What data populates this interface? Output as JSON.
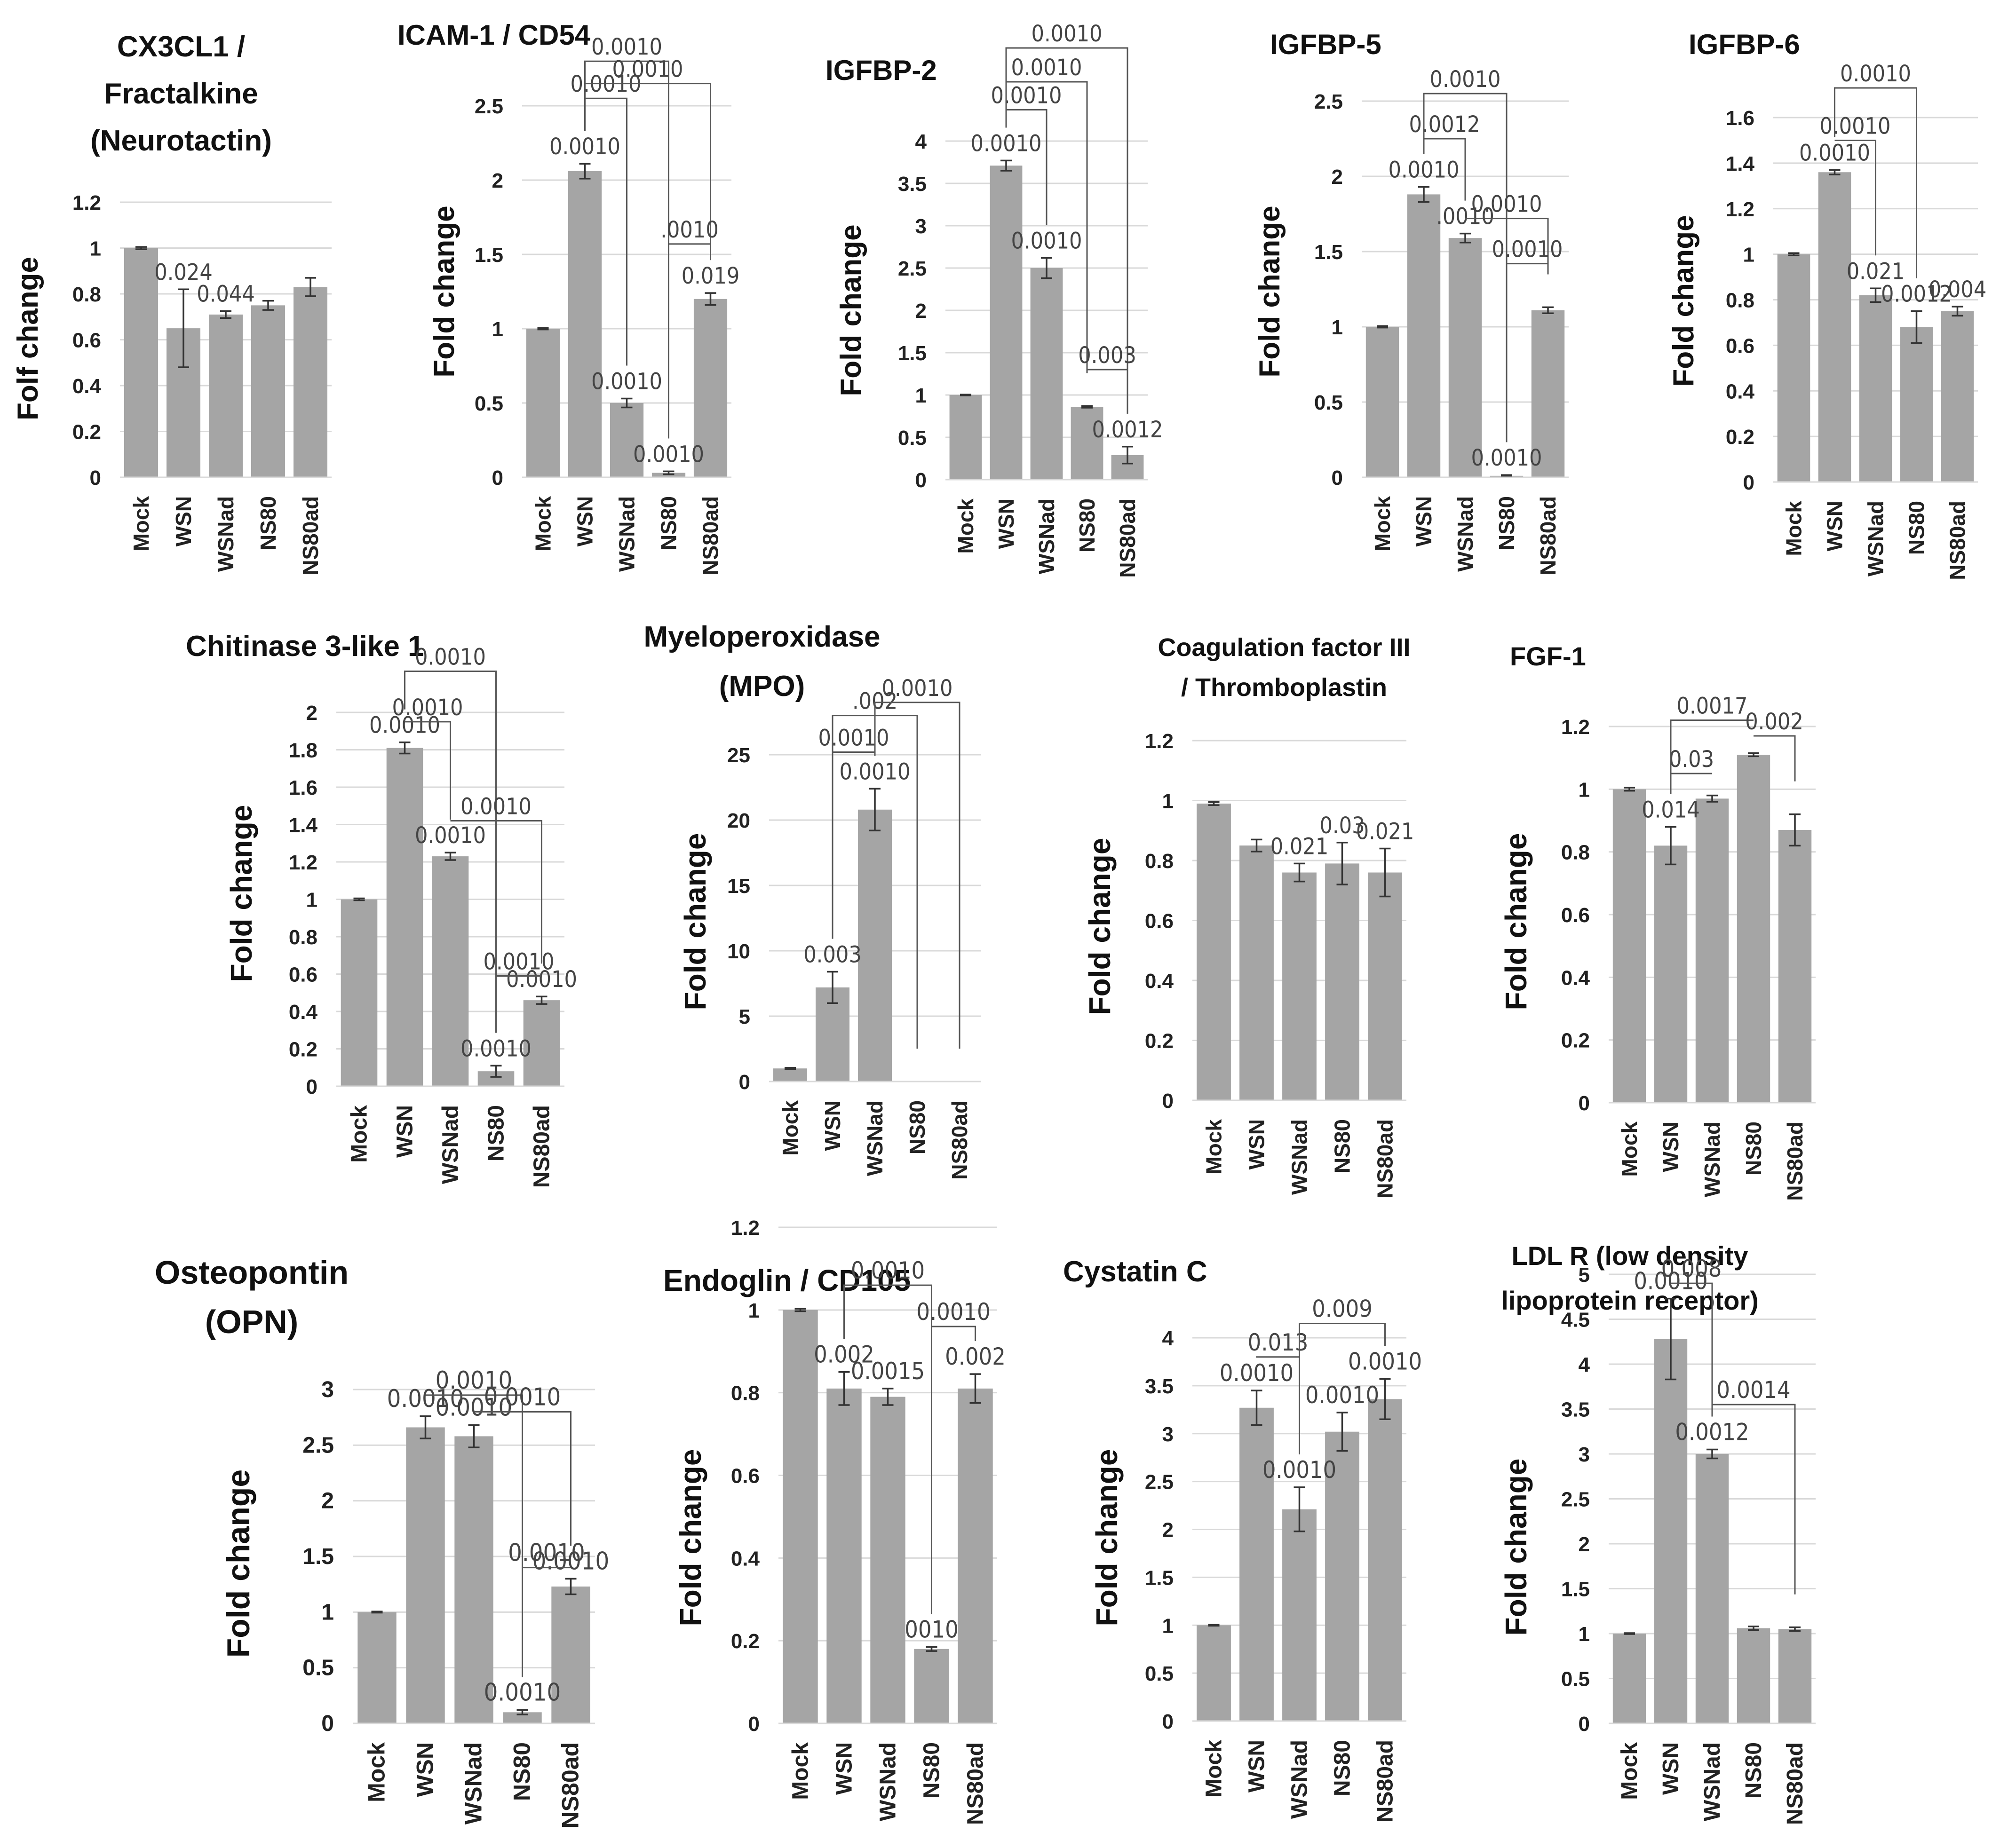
{
  "chart_data": [
    {
      "type": "bar",
      "title_lines": [
        "CX3CL1 /",
        "Fractalkine",
        "(Neurotactin)"
      ],
      "ylabel": "Folf change",
      "categories": [
        "Mock",
        "WSN",
        "WSNad",
        "NS80",
        "NS80ad"
      ],
      "values": [
        1.0,
        0.65,
        0.71,
        0.75,
        0.83
      ],
      "errors": [
        0.005,
        0.17,
        0.015,
        0.02,
        0.04
      ],
      "ylim": [
        0,
        1.2
      ],
      "yticks": [
        "0",
        "0.2",
        "0.4",
        "0.6",
        "0.8",
        "1",
        "1.2"
      ],
      "bar_labels": [
        "",
        "0.024",
        "0.044",
        "",
        ""
      ],
      "brackets": []
    },
    {
      "type": "bar",
      "title_lines": [
        "ICAM-1 / CD54"
      ],
      "ylabel": "Fold change",
      "categories": [
        "Mock",
        "WSN",
        "WSNad",
        "NS80",
        "NS80ad"
      ],
      "values": [
        1.0,
        2.06,
        0.5,
        0.03,
        1.2
      ],
      "errors": [
        0.005,
        0.05,
        0.03,
        0.01,
        0.04
      ],
      "ylim": [
        0,
        2.5
      ],
      "yticks": [
        "0",
        "0.5",
        "1",
        "1.5",
        "2",
        "2.5"
      ],
      "bar_labels": [
        "",
        "0.0010",
        "0.0010",
        "0.0010",
        "0.019"
      ],
      "brackets": [
        {
          "from": 1,
          "to": 2,
          "y": 2.55,
          "label": "0.0010"
        },
        {
          "from": 1,
          "to": 3,
          "y": 2.8,
          "label": "0.0010"
        },
        {
          "from": 1,
          "to": 4,
          "y": 2.65,
          "label": "0.0010"
        },
        {
          "from": 3,
          "to": 4,
          "y": 1.57,
          "label": ".0010"
        }
      ]
    },
    {
      "type": "bar",
      "title_lines": [
        "IGFBP-2"
      ],
      "ylabel": "Fold change",
      "categories": [
        "Mock",
        "WSN",
        "WSNad",
        "NS80",
        "NS80ad"
      ],
      "values": [
        1.0,
        3.71,
        2.5,
        0.86,
        0.29
      ],
      "errors": [
        0.005,
        0.06,
        0.12,
        0.01,
        0.1
      ],
      "ylim": [
        0,
        4
      ],
      "yticks": [
        "0",
        "0.5",
        "1",
        "1.5",
        "2",
        "2.5",
        "3",
        "3.5",
        "4"
      ],
      "bar_labels": [
        "",
        "0.0010",
        "0.0010",
        "",
        "0.0012"
      ],
      "brackets": [
        {
          "from": 1,
          "to": 2,
          "y": 4.37,
          "label": "0.0010"
        },
        {
          "from": 1,
          "to": 3,
          "y": 4.7,
          "label": "0.0010"
        },
        {
          "from": 1,
          "to": 4,
          "y": 5.1,
          "label": "0.0010"
        },
        {
          "from": 3,
          "to": 4,
          "y": 1.3,
          "label": "0.003"
        }
      ]
    },
    {
      "type": "bar",
      "title_lines": [
        "IGFBP-5"
      ],
      "ylabel": "Fold change",
      "categories": [
        "Mock",
        "WSN",
        "WSNad",
        "NS80",
        "NS80ad"
      ],
      "values": [
        1.0,
        1.88,
        1.59,
        0.01,
        1.11
      ],
      "errors": [
        0.005,
        0.05,
        0.03,
        0.005,
        0.02
      ],
      "ylim": [
        0,
        2.5
      ],
      "yticks": [
        "0",
        "0.5",
        "1",
        "1.5",
        "2",
        "2.5"
      ],
      "bar_labels": [
        "",
        "0.0010",
        ".0010",
        "0.0010",
        ""
      ],
      "brackets": [
        {
          "from": 1,
          "to": 2,
          "y": 2.25,
          "label": "0.0012"
        },
        {
          "from": 1,
          "to": 3,
          "y": 2.55,
          "label": "0.0010"
        },
        {
          "from": 2,
          "to": 4,
          "y": 1.72,
          "label": "0.0010"
        },
        {
          "from": 3,
          "to": 4,
          "y": 1.42,
          "label": "0.0010"
        }
      ]
    },
    {
      "type": "bar",
      "title_lines": [
        "IGFBP-6"
      ],
      "ylabel": "Fold change",
      "categories": [
        "Mock",
        "WSN",
        "WSNad",
        "NS80",
        "NS80ad"
      ],
      "values": [
        1.0,
        1.36,
        0.82,
        0.68,
        0.75
      ],
      "errors": [
        0.005,
        0.01,
        0.03,
        0.07,
        0.02
      ],
      "ylim": [
        0,
        1.6
      ],
      "yticks": [
        "0",
        "0.2",
        "0.4",
        "0.6",
        "0.8",
        "1",
        "1.2",
        "1.4",
        "1.6"
      ],
      "bar_labels": [
        "",
        "0.0010",
        "0.021",
        "0.0012",
        "0.004"
      ],
      "brackets": [
        {
          "from": 1,
          "to": 2,
          "y": 1.5,
          "label": "0.0010"
        },
        {
          "from": 1,
          "to": 3,
          "y": 1.73,
          "label": "0.0010"
        }
      ]
    },
    {
      "type": "bar",
      "title_lines": [
        "Chitinase 3-like 1"
      ],
      "ylabel": "Fold change",
      "categories": [
        "Mock",
        "WSN",
        "WSNad",
        "NS80",
        "NS80ad"
      ],
      "values": [
        1.0,
        1.81,
        1.23,
        0.08,
        0.46
      ],
      "errors": [
        0.005,
        0.03,
        0.02,
        0.03,
        0.02
      ],
      "ylim": [
        0,
        2
      ],
      "yticks": [
        "0",
        "0.2",
        "0.4",
        "0.6",
        "0.8",
        "1",
        "1.2",
        "1.4",
        "1.6",
        "1.8",
        "2"
      ],
      "bar_labels": [
        "",
        "0.0010",
        "0.0010",
        "0.0010",
        "0.0010"
      ],
      "brackets": [
        {
          "from": 1,
          "to": 2,
          "y": 1.95,
          "label": "0.0010"
        },
        {
          "from": 1,
          "to": 3,
          "y": 2.22,
          "label": "0.0010"
        },
        {
          "from": 2,
          "to": 4,
          "y": 1.42,
          "label": "0.0010"
        },
        {
          "from": 3,
          "to": 4,
          "y": 0.59,
          "label": "0.0010"
        }
      ]
    },
    {
      "type": "bar",
      "title_lines": [
        "Myeloperoxidase",
        "(MPO)"
      ],
      "ylabel": "Fold change",
      "categories": [
        "Mock",
        "WSN",
        "WSNad",
        "NS80",
        "NS80ad"
      ],
      "values": [
        1.0,
        7.2,
        20.8,
        0,
        0
      ],
      "errors": [
        0.05,
        1.2,
        1.6,
        0,
        0
      ],
      "ylim": [
        0,
        25
      ],
      "yticks": [
        "0",
        "5",
        "10",
        "15",
        "20",
        "25"
      ],
      "bar_labels": [
        "",
        "0.003",
        "0.0010",
        "",
        ""
      ],
      "brackets": [
        {
          "from": 1,
          "to": 2,
          "y": 25.2,
          "label": "0.0010"
        },
        {
          "from": 1,
          "to": 3,
          "y": 28.0,
          "label": ".002"
        },
        {
          "from": 2,
          "to": 4,
          "y": 29.0,
          "label": "0.0010"
        }
      ]
    },
    {
      "type": "bar",
      "title_lines": [
        "Coagulation factor III",
        "/ Thromboplastin"
      ],
      "ylabel": "Fold change",
      "categories": [
        "Mock",
        "WSN",
        "WSNad",
        "NS80",
        "NS80ad"
      ],
      "values": [
        0.99,
        0.85,
        0.76,
        0.79,
        0.76
      ],
      "errors": [
        0.005,
        0.02,
        0.03,
        0.07,
        0.08
      ],
      "ylim": [
        0,
        1.2
      ],
      "yticks": [
        "0",
        "0.2",
        "0.4",
        "0.6",
        "0.8",
        "1",
        "1.2"
      ],
      "bar_labels": [
        "",
        "",
        "0.021",
        "0.03",
        "0.021"
      ],
      "brackets": []
    },
    {
      "type": "bar",
      "title_lines": [
        "FGF-1"
      ],
      "ylabel": "Fold change",
      "categories": [
        "Mock",
        "WSN",
        "WSNad",
        "NS80",
        "NS80ad"
      ],
      "values": [
        1.0,
        0.82,
        0.97,
        1.11,
        0.87
      ],
      "errors": [
        0.005,
        0.06,
        0.01,
        0.005,
        0.05
      ],
      "ylim": [
        0,
        1.2
      ],
      "yticks": [
        "0",
        "0.2",
        "0.4",
        "0.6",
        "0.8",
        "1",
        "1.2"
      ],
      "bar_labels": [
        "",
        "0.014",
        "",
        "",
        ""
      ],
      "brackets": [
        {
          "from": 1,
          "to": 2,
          "y": 1.05,
          "label": "0.03"
        },
        {
          "from": 1,
          "to": 3,
          "y": 1.22,
          "label": "0.0017"
        },
        {
          "from": 3,
          "to": 4,
          "y": 1.17,
          "label": "0.002"
        }
      ]
    },
    {
      "type": "bar",
      "title_lines": [
        "Osteopontin",
        "(OPN)"
      ],
      "ylabel": "Fold change",
      "categories": [
        "Mock",
        "WSN",
        "WSNad",
        "NS80",
        "NS80ad"
      ],
      "values": [
        1.0,
        2.66,
        2.58,
        0.1,
        1.23
      ],
      "errors": [
        0.005,
        0.1,
        0.1,
        0.02,
        0.07
      ],
      "ylim": [
        0,
        3
      ],
      "yticks": [
        "0",
        "0.5",
        "1",
        "1.5",
        "2",
        "2.5",
        "3"
      ],
      "bar_labels": [
        "",
        "0.0010",
        "0.0010",
        "0.0010",
        "0.0010"
      ],
      "brackets": [
        {
          "from": 1,
          "to": 3,
          "y": 2.95,
          "label": "0.0010"
        },
        {
          "from": 2,
          "to": 4,
          "y": 2.8,
          "label": "0.0010"
        },
        {
          "from": 3,
          "to": 4,
          "y": 1.4,
          "label": "0.0010"
        }
      ]
    },
    {
      "type": "bar",
      "title_lines": [
        "Endoglin / CD105"
      ],
      "ylabel": "Fold change",
      "categories": [
        "Mock",
        "WSN",
        "WSNad",
        "NS80",
        "NS80ad"
      ],
      "values": [
        1.0,
        0.81,
        0.79,
        0.18,
        0.81
      ],
      "errors": [
        0.003,
        0.04,
        0.02,
        0.005,
        0.035
      ],
      "ylim": [
        0,
        1.2
      ],
      "yticks": [
        "0",
        "0.2",
        "0.4",
        "0.6",
        "0.8",
        "1",
        "1.2"
      ],
      "bar_labels": [
        "",
        "0.002",
        "0.0015",
        "0010",
        "0.002"
      ],
      "brackets": [
        {
          "from": 1,
          "to": 3,
          "y": 1.06,
          "label": "0.0010"
        },
        {
          "from": 3,
          "to": 4,
          "y": 0.96,
          "label": "0.0010"
        }
      ]
    },
    {
      "type": "bar",
      "title_lines": [
        "Cystatin C"
      ],
      "ylabel": "Fold change",
      "categories": [
        "Mock",
        "WSN",
        "WSNad",
        "NS80",
        "NS80ad"
      ],
      "values": [
        1.0,
        3.27,
        2.21,
        3.02,
        3.36
      ],
      "errors": [
        0.005,
        0.18,
        0.23,
        0.2,
        0.21
      ],
      "ylim": [
        0,
        4
      ],
      "yticks": [
        "0",
        "0.5",
        "1",
        "1.5",
        "2",
        "2.5",
        "3",
        "3.5",
        "4"
      ],
      "bar_labels": [
        "",
        "0.0010",
        "0.0010",
        "0.0010",
        "0.0010"
      ],
      "brackets": [
        {
          "from": 1,
          "to": 2,
          "y": 3.8,
          "label": "0.013"
        },
        {
          "from": 2,
          "to": 4,
          "y": 4.15,
          "label": "0.009"
        }
      ]
    },
    {
      "type": "bar",
      "title_lines": [
        "LDL R (low density",
        "lipoprotein receptor)"
      ],
      "ylabel": "Fold change",
      "categories": [
        "Mock",
        "WSN",
        "WSNad",
        "NS80",
        "NS80ad"
      ],
      "values": [
        1.0,
        4.28,
        3.0,
        1.06,
        1.05
      ],
      "errors": [
        0.005,
        0.45,
        0.05,
        0.02,
        0.02
      ],
      "ylim": [
        0,
        5
      ],
      "yticks": [
        "0",
        "0.5",
        "1",
        "1.5",
        "2",
        "2.5",
        "3",
        "3.5",
        "4",
        "4.5",
        "5"
      ],
      "bar_labels": [
        "",
        "0.0010",
        "0.0012",
        "",
        ""
      ],
      "brackets": [
        {
          "from": 1,
          "to": 2,
          "y": 4.9,
          "label": "0.008"
        },
        {
          "from": 2,
          "to": 4,
          "y": 3.55,
          "label": "0.0014"
        }
      ]
    }
  ]
}
